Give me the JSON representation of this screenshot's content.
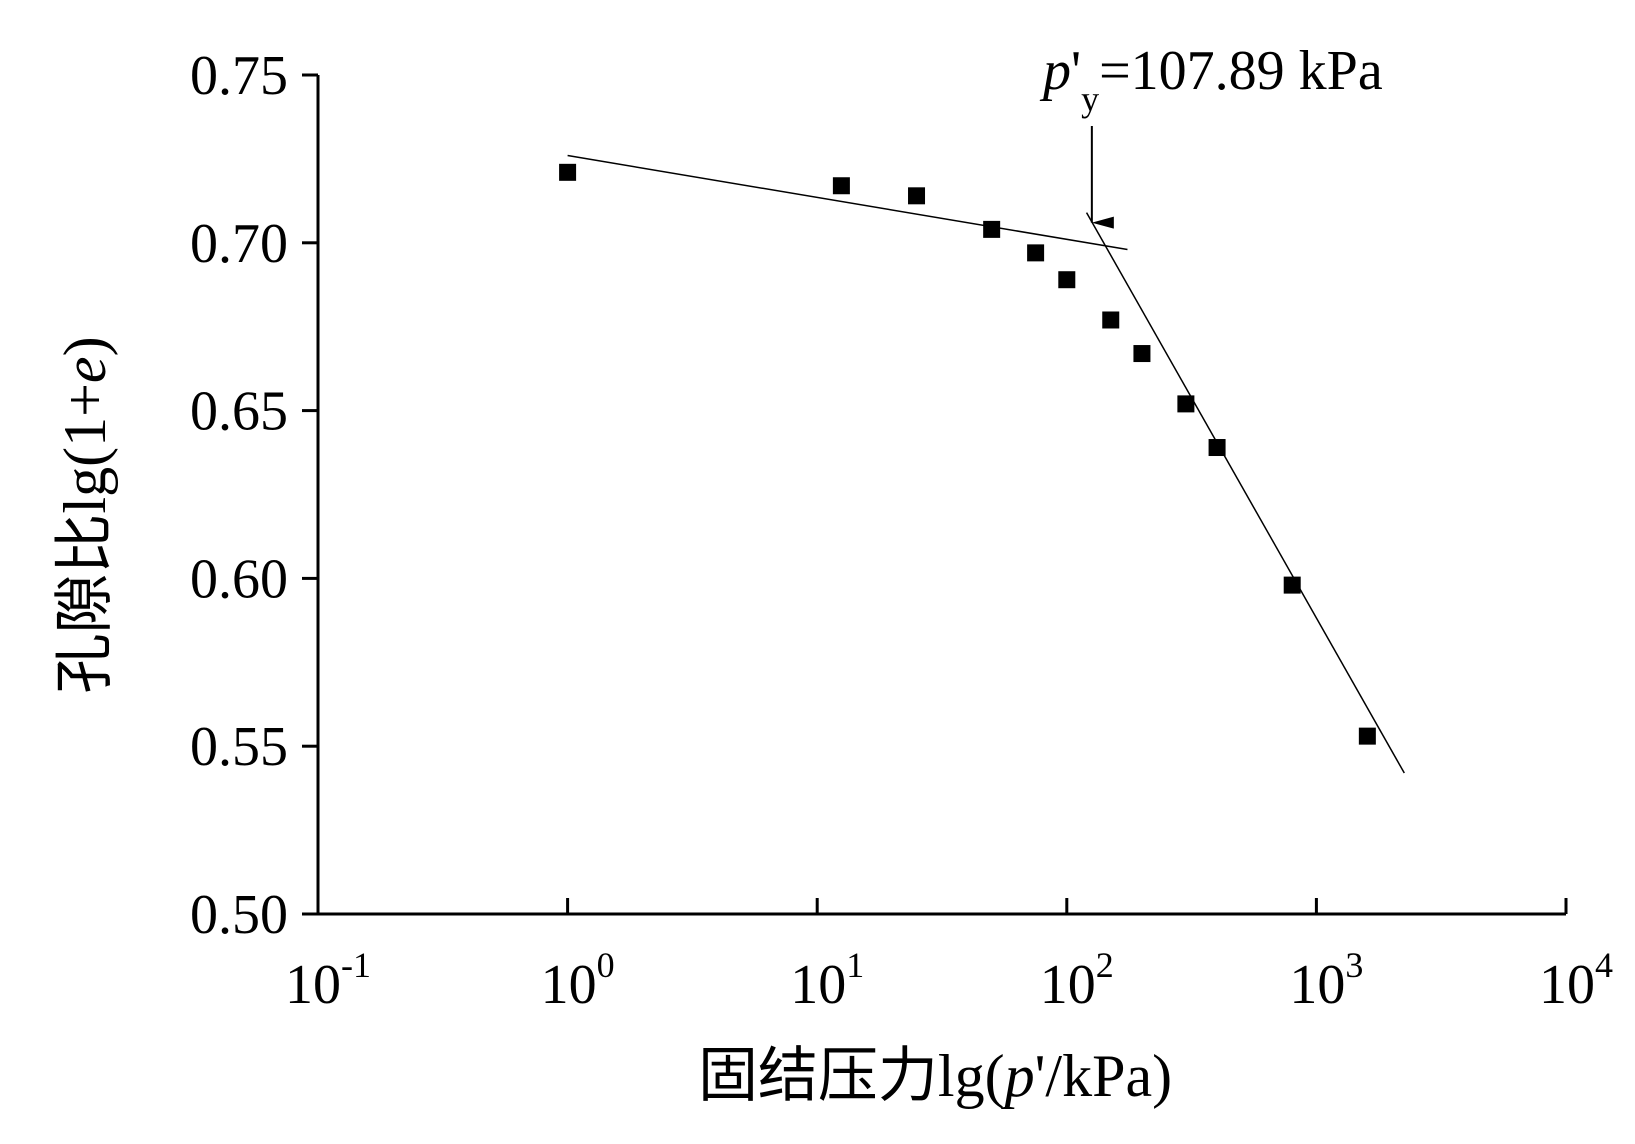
{
  "chart_data": {
    "type": "scatter",
    "xscale": "log",
    "xlim": [
      0.1,
      10000
    ],
    "ylim": [
      0.5,
      0.75
    ],
    "x_ticks": [
      {
        "base": "10",
        "exp": "-1",
        "value": 0.1
      },
      {
        "base": "10",
        "exp": "0",
        "value": 1
      },
      {
        "base": "10",
        "exp": "1",
        "value": 10
      },
      {
        "base": "10",
        "exp": "2",
        "value": 100
      },
      {
        "base": "10",
        "exp": "3",
        "value": 1000
      },
      {
        "base": "10",
        "exp": "4",
        "value": 10000
      }
    ],
    "y_ticks": [
      "0.50",
      "0.55",
      "0.60",
      "0.65",
      "0.70",
      "0.75"
    ],
    "ylabel": {
      "prefix": "孔隙比lg(1+",
      "var": "e",
      "suffix": ")"
    },
    "xlabel": {
      "prefix": "固结压力lg(",
      "var": "p",
      "suffix": "'/kPa)"
    },
    "points": [
      {
        "x": 1,
        "y": 0.721
      },
      {
        "x": 12.5,
        "y": 0.717
      },
      {
        "x": 25,
        "y": 0.714
      },
      {
        "x": 50,
        "y": 0.704
      },
      {
        "x": 75,
        "y": 0.697
      },
      {
        "x": 100,
        "y": 0.689
      },
      {
        "x": 150,
        "y": 0.677
      },
      {
        "x": 200,
        "y": 0.667
      },
      {
        "x": 300,
        "y": 0.652
      },
      {
        "x": 400,
        "y": 0.639
      },
      {
        "x": 800,
        "y": 0.598
      },
      {
        "x": 1600,
        "y": 0.553
      }
    ],
    "fit_lines": [
      {
        "from": {
          "x": 1,
          "y": 0.726
        },
        "to": {
          "x": 175,
          "y": 0.698
        }
      },
      {
        "from": {
          "x": 120,
          "y": 0.709
        },
        "to": {
          "x": 2250,
          "y": 0.542
        }
      }
    ],
    "annotation": {
      "var": "p",
      "prime": "'",
      "sub": "y",
      "value_text": "=107.89 kPa",
      "arrow_x": 126,
      "arrow_tip_y": 0.706
    },
    "marker_color": "#000000",
    "line_color": "#000000"
  }
}
